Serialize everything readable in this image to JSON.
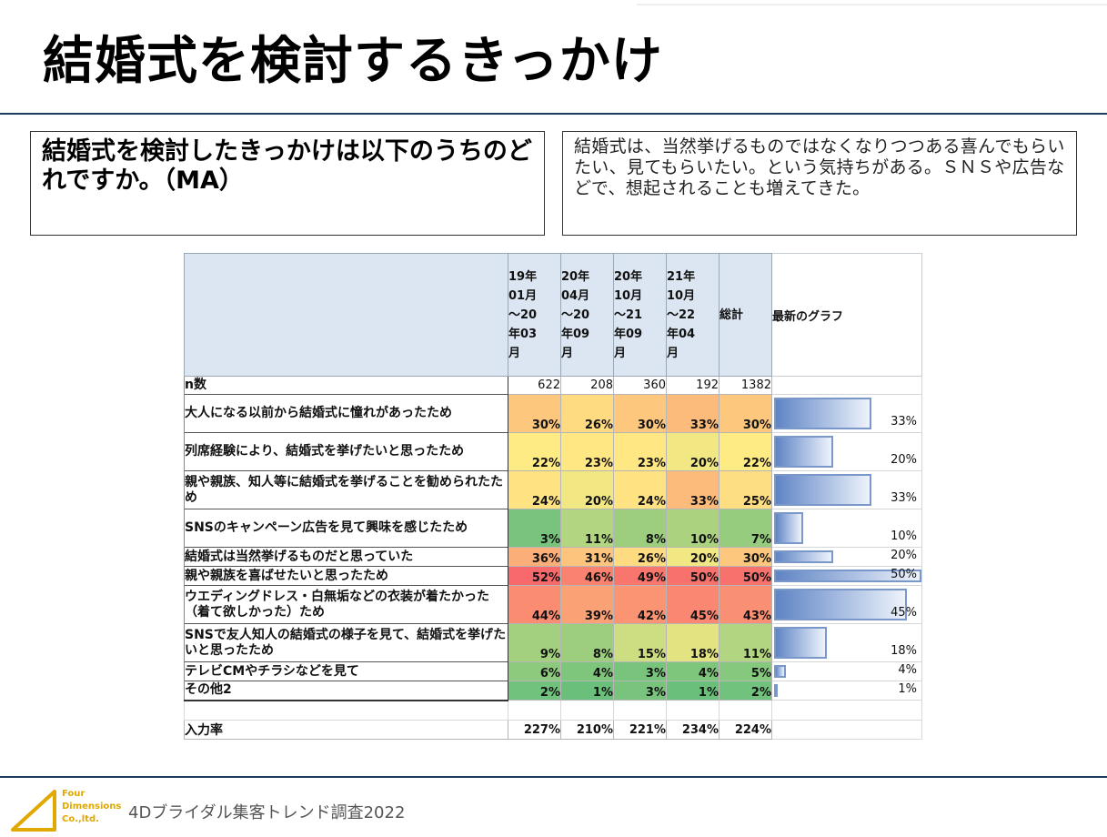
{
  "title": "結婚式を検討するきっかけ",
  "question": "結婚式を検討したきっかけは以下のうちのどれですか。（MA）",
  "comment": "結婚式は、当然挙げるものではなくなりつつある喜んでもらいたい、見てもらいたい。という気持ちがある。ＳＮＳや広告などで、想起されることも増えてきた。",
  "table": {
    "columns": [
      {
        "lines": [
          "19年",
          "01月",
          "～20",
          "年03",
          "月"
        ]
      },
      {
        "lines": [
          "20年",
          "04月",
          "～20",
          "年09",
          "月"
        ]
      },
      {
        "lines": [
          "20年",
          "10月",
          "～21",
          "年09",
          "月"
        ]
      },
      {
        "lines": [
          "21年",
          "10月",
          "～22",
          "年04",
          "月"
        ]
      },
      {
        "lines": [
          "総計"
        ]
      }
    ],
    "graph_header": "最新のグラフ",
    "n_label": "n数",
    "n_values": [
      "622",
      "208",
      "360",
      "192",
      "1382"
    ],
    "rows": [
      {
        "label": "大人になる以前から結婚式に憧れがあったため",
        "values": [
          "30%",
          "26%",
          "30%",
          "33%",
          "30%"
        ],
        "latest": "33%"
      },
      {
        "label": "列席経験により、結婚式を挙げたいと思ったため",
        "values": [
          "22%",
          "23%",
          "23%",
          "20%",
          "22%"
        ],
        "latest": "20%"
      },
      {
        "label": "親や親族、知人等に結婚式を挙げることを勧められたため",
        "values": [
          "24%",
          "20%",
          "24%",
          "33%",
          "25%"
        ],
        "latest": "33%"
      },
      {
        "label": "SNSのキャンペーン広告を見て興味を感じたため",
        "values": [
          "3%",
          "11%",
          "8%",
          "10%",
          "7%"
        ],
        "latest": "10%"
      },
      {
        "label": "結婚式は当然挙げるものだと思っていた",
        "values": [
          "36%",
          "31%",
          "26%",
          "20%",
          "30%"
        ],
        "latest": "20%"
      },
      {
        "label": "親や親族を喜ばせたいと思ったため",
        "values": [
          "52%",
          "46%",
          "49%",
          "50%",
          "50%"
        ],
        "latest": "50%"
      },
      {
        "label": "ウエディングドレス・白無垢などの衣装が着たかった（着て欲しかった）ため",
        "values": [
          "44%",
          "39%",
          "42%",
          "45%",
          "43%"
        ],
        "latest": "45%"
      },
      {
        "label": "SNSで友人知人の結婚式の様子を見て、結婚式を挙げたいと思ったため",
        "values": [
          "9%",
          "8%",
          "15%",
          "18%",
          "11%"
        ],
        "latest": "18%"
      },
      {
        "label": "テレビCMやチラシなどを見て",
        "values": [
          "6%",
          "4%",
          "3%",
          "4%",
          "5%"
        ],
        "latest": "4%"
      },
      {
        "label": "その他2",
        "values": [
          "2%",
          "1%",
          "3%",
          "1%",
          "2%"
        ],
        "latest": "1%"
      }
    ],
    "input_label": "入力率",
    "input_values": [
      "227%",
      "210%",
      "221%",
      "234%",
      "224%"
    ]
  },
  "chart_data": {
    "type": "bar",
    "title": "最新のグラフ",
    "categories": [
      "大人になる以前から結婚式に憧れがあったため",
      "列席経験により、結婚式を挙げたいと思ったため",
      "親や親族、知人等に結婚式を挙げることを勧められたため",
      "SNSのキャンペーン広告を見て興味を感じたため",
      "結婚式は当然挙げるものだと思っていた",
      "親や親族を喜ばせたいと思ったため",
      "ウエディングドレス・白無垢などの衣装が着たかった（着て欲しかった）ため",
      "SNSで友人知人の結婚式の様子を見て、結婚式を挙げたいと思ったため",
      "テレビCMやチラシなどを見て",
      "その他2"
    ],
    "values": [
      33,
      20,
      33,
      10,
      20,
      50,
      45,
      18,
      4,
      1
    ],
    "xlim": [
      0,
      50
    ],
    "orientation": "horizontal"
  },
  "colors": {
    "rule": "#1e3a5c",
    "header_bg": "#dce6f2",
    "bar": "#7a97c9"
  },
  "logo": {
    "lines": [
      "Four",
      "Dimensions",
      "Co.,ltd."
    ]
  },
  "footer": "4Dブライダル集客トレンド調査2022"
}
